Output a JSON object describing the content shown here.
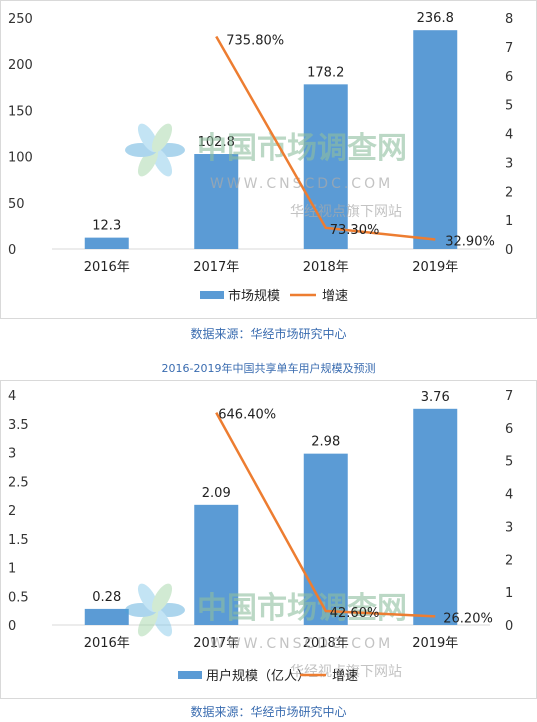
{
  "chart_data": [
    {
      "type": "bar",
      "title": "",
      "categories": [
        "2016年",
        "2017年",
        "2018年",
        "2019年"
      ],
      "series": [
        {
          "name": "市场规模",
          "axis": "left",
          "kind": "bar",
          "values": [
            12.3,
            102.8,
            178.2,
            236.8
          ],
          "labels": [
            "12.3",
            "102.8",
            "178.2",
            "236.8"
          ]
        },
        {
          "name": "增速",
          "axis": "right",
          "kind": "line",
          "values": [
            null,
            7.358,
            0.733,
            0.329
          ],
          "labels": [
            "",
            "735.80%",
            "73.30%",
            "32.90%"
          ]
        }
      ],
      "ylim": [
        0,
        250
      ],
      "yticks": [
        "0",
        "50",
        "100",
        "150",
        "200",
        "250"
      ],
      "y2lim": [
        0,
        8
      ],
      "y2ticks": [
        "0",
        "1",
        "2",
        "3",
        "4",
        "5",
        "6",
        "7",
        "8"
      ],
      "legend": "bottom",
      "grid": false
    },
    {
      "type": "bar",
      "title": "2016-2019年中国共享单车用户规模及预测",
      "categories": [
        "2016年",
        "2017年",
        "2018年",
        "2019年"
      ],
      "series": [
        {
          "name": "用户规模（亿人）",
          "axis": "left",
          "kind": "bar",
          "values": [
            0.28,
            2.09,
            2.98,
            3.76
          ],
          "labels": [
            "0.28",
            "2.09",
            "2.98",
            "3.76"
          ]
        },
        {
          "name": "增速",
          "axis": "right",
          "kind": "line",
          "values": [
            null,
            6.464,
            0.426,
            0.262
          ],
          "labels": [
            "",
            "646.40%",
            "42.60%",
            "26.20%"
          ]
        }
      ],
      "ylim": [
        0,
        4
      ],
      "yticks": [
        "0",
        "0.5",
        "1",
        "1.5",
        "2",
        "2.5",
        "3",
        "3.5",
        "4"
      ],
      "y2lim": [
        0,
        7
      ],
      "y2ticks": [
        "0",
        "1",
        "2",
        "3",
        "4",
        "5",
        "6",
        "7"
      ],
      "legend": "bottom",
      "grid": false
    }
  ],
  "source_1": "数据来源：华经市场研究中心",
  "source_2": "数据来源：华经市场研究中心",
  "watermark": {
    "brand": "中国市场调查网",
    "url": "WWW.CNSCDC.COM",
    "slogan": "华经视点旗下网站"
  },
  "colors": {
    "bar": "#5b9bd5",
    "line": "#ed7d31",
    "source": "#3a6cb0",
    "watermark": "#8fbf9f"
  }
}
